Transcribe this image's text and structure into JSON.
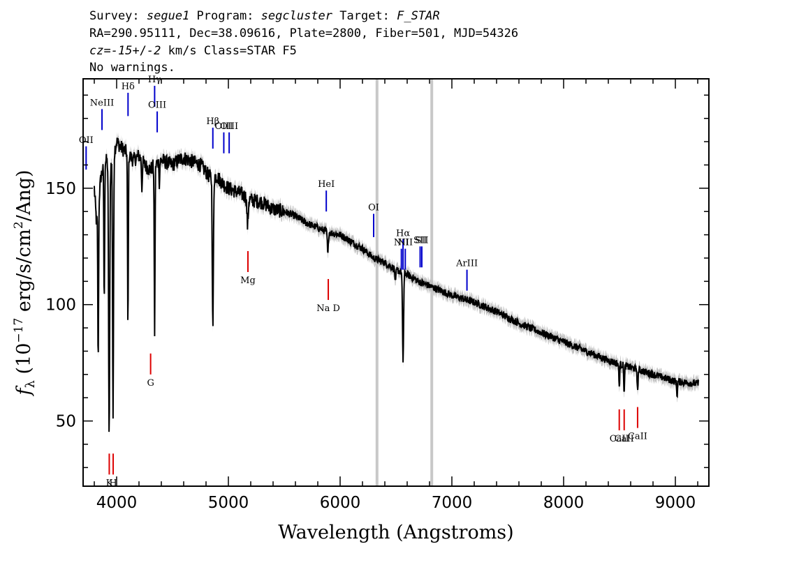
{
  "header": {
    "line1": [
      {
        "t": "Survey: ",
        "i": false
      },
      {
        "t": "segue1",
        "i": true
      },
      {
        "t": " Program: ",
        "i": false
      },
      {
        "t": "segcluster",
        "i": true
      },
      {
        "t": " Target: ",
        "i": false
      },
      {
        "t": "F_STAR",
        "i": true
      }
    ],
    "line2": "RA=290.95111, Dec=38.09616, Plate=2800, Fiber=501, MJD=54326",
    "line3": [
      {
        "t": "cz=",
        "i": true
      },
      {
        "t": "-15",
        "i": true
      },
      {
        "t": "+/",
        "i": false
      },
      {
        "t": "-2",
        "i": true
      },
      {
        "t": " km/s Class=STAR F5",
        "i": false
      }
    ],
    "line4": "No warnings."
  },
  "chart_data": {
    "type": "line",
    "xlabel": "Wavelength (Angstroms)",
    "ylabel": "f_λ (10^-17 erg/s/cm^2/Ang)",
    "xlim": [
      3700,
      9300
    ],
    "ylim": [
      22,
      197
    ],
    "x_ticks": [
      4000,
      5000,
      6000,
      7000,
      8000,
      9000
    ],
    "y_ticks": [
      50,
      100,
      150
    ],
    "x_tick_labels": [
      "4000",
      "5000",
      "6000",
      "7000",
      "8000",
      "9000"
    ],
    "y_tick_labels": [
      "50",
      "100",
      "150"
    ],
    "colors": {
      "spectrum": "#000000",
      "error_band": "#c0c0c0",
      "emission": "#0000cc",
      "absorption": "#dd0000",
      "masked": "#c8c8c8"
    },
    "masked_regions": [
      6330,
      6820
    ],
    "spectrum_anchors": [
      [
        3800,
        150
      ],
      [
        3820,
        135
      ],
      [
        3860,
        155
      ],
      [
        3900,
        162
      ],
      [
        3950,
        160
      ],
      [
        4000,
        170
      ],
      [
        4050,
        167
      ],
      [
        4100,
        165
      ],
      [
        4150,
        162
      ],
      [
        4200,
        164
      ],
      [
        4250,
        160
      ],
      [
        4300,
        158
      ],
      [
        4340,
        160
      ],
      [
        4400,
        162
      ],
      [
        4450,
        161
      ],
      [
        4500,
        160
      ],
      [
        4550,
        162
      ],
      [
        4600,
        163
      ],
      [
        4650,
        162
      ],
      [
        4700,
        161
      ],
      [
        4750,
        160
      ],
      [
        4800,
        157
      ],
      [
        4830,
        155
      ],
      [
        4900,
        155
      ],
      [
        4950,
        152
      ],
      [
        5000,
        150
      ],
      [
        5100,
        148
      ],
      [
        5200,
        145
      ],
      [
        5300,
        144
      ],
      [
        5400,
        141
      ],
      [
        5500,
        140
      ],
      [
        5600,
        138
      ],
      [
        5700,
        135
      ],
      [
        5800,
        133
      ],
      [
        5900,
        131
      ],
      [
        6000,
        130
      ],
      [
        6100,
        127
      ],
      [
        6200,
        124
      ],
      [
        6300,
        120
      ],
      [
        6400,
        118
      ],
      [
        6500,
        115
      ],
      [
        6600,
        113
      ],
      [
        6700,
        110
      ],
      [
        6800,
        108
      ],
      [
        7000,
        104
      ],
      [
        7200,
        101
      ],
      [
        7400,
        97
      ],
      [
        7600,
        92
      ],
      [
        7800,
        88
      ],
      [
        8000,
        84
      ],
      [
        8200,
        80
      ],
      [
        8400,
        76
      ],
      [
        8600,
        73
      ],
      [
        8800,
        70
      ],
      [
        9000,
        67
      ],
      [
        9200,
        66
      ]
    ],
    "spectrum_dips": [
      [
        3835,
        68,
        5
      ],
      [
        3889,
        60,
        5
      ],
      [
        3933,
        118,
        7
      ],
      [
        3968,
        112,
        6
      ],
      [
        4101,
        75,
        5
      ],
      [
        4226,
        12,
        5
      ],
      [
        4340,
        72,
        5
      ],
      [
        4383,
        10,
        4
      ],
      [
        4861,
        65,
        7
      ],
      [
        5172,
        12,
        8
      ],
      [
        5890,
        10,
        6
      ],
      [
        6563,
        38,
        7
      ],
      [
        6495,
        6,
        6
      ],
      [
        8498,
        10,
        5
      ],
      [
        8542,
        12,
        5
      ],
      [
        8662,
        10,
        5
      ],
      [
        9015,
        6,
        5
      ],
      [
        3760,
        48,
        4
      ]
    ],
    "emission_lines": [
      {
        "label": "OII",
        "x": 3727,
        "y_lo": 158,
        "y_hi": 168
      },
      {
        "label": "NeIII",
        "x": 3869,
        "y_lo": 175,
        "y_hi": 184
      },
      {
        "label": "Hδ",
        "x": 4102,
        "y_lo": 181,
        "y_hi": 191
      },
      {
        "label": "Hγ",
        "x": 4340,
        "y_lo": 185,
        "y_hi": 194
      },
      {
        "label": "OIII",
        "x": 4363,
        "y_lo": 174,
        "y_hi": 183
      },
      {
        "label": "Hβ",
        "x": 4861,
        "y_lo": 167,
        "y_hi": 176
      },
      {
        "label": "OIII",
        "x": 4959,
        "y_lo": 165,
        "y_hi": 174
      },
      {
        "label": "OIII",
        "x": 5007,
        "y_lo": 165,
        "y_hi": 174
      },
      {
        "label": "HeI",
        "x": 5876,
        "y_lo": 140,
        "y_hi": 149
      },
      {
        "label": "OI",
        "x": 6300,
        "y_lo": 129,
        "y_hi": 139
      },
      {
        "label": "NII",
        "x": 6548,
        "y_lo": 115,
        "y_hi": 124
      },
      {
        "label": "Hα",
        "x": 6563,
        "y_lo": 115,
        "y_hi": 128
      },
      {
        "label": "NII",
        "x": 6583,
        "y_lo": 115,
        "y_hi": 124
      },
      {
        "label": "SII",
        "x": 6716,
        "y_lo": 116,
        "y_hi": 125
      },
      {
        "label": "SII",
        "x": 6731,
        "y_lo": 116,
        "y_hi": 125
      },
      {
        "label": "ArIII",
        "x": 7135,
        "y_lo": 106,
        "y_hi": 115
      }
    ],
    "absorption_lines": [
      {
        "label": "K",
        "x": 3934,
        "y_lo": 27,
        "y_hi": 36
      },
      {
        "label": "H",
        "x": 3969,
        "y_lo": 27,
        "y_hi": 36
      },
      {
        "label": "G",
        "x": 4304,
        "y_lo": 70,
        "y_hi": 79
      },
      {
        "label": "Mg",
        "x": 5175,
        "y_lo": 114,
        "y_hi": 123
      },
      {
        "label": "Na D",
        "x": 5894,
        "y_lo": 102,
        "y_hi": 111
      },
      {
        "label": "CaII",
        "x": 8498,
        "y_lo": 46,
        "y_hi": 55
      },
      {
        "label": "CaII",
        "x": 8542,
        "y_lo": 46,
        "y_hi": 55
      },
      {
        "label": "CaII",
        "x": 8662,
        "y_lo": 47,
        "y_hi": 56
      }
    ]
  }
}
